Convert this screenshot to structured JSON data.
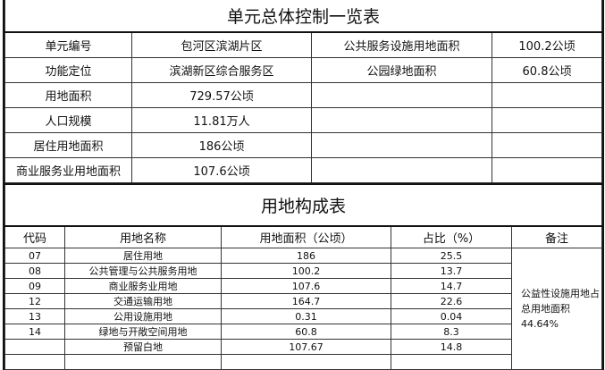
{
  "summary": {
    "title": "单元总体控制一览表",
    "rows": [
      [
        "单元编号",
        "包河区滨湖片区",
        "公共服务设施用地面积",
        "100.2公顷"
      ],
      [
        "功能定位",
        "滨湖新区综合服务区",
        "公园绿地面积",
        "60.8公顷"
      ],
      [
        "用地面积",
        "729.57公顷",
        "",
        ""
      ],
      [
        "人口规模",
        "11.81万人",
        "",
        ""
      ],
      [
        "居住用地面积",
        "186公顷",
        "",
        ""
      ],
      [
        "商业服务业用地面积",
        "107.6公顷",
        "",
        ""
      ]
    ]
  },
  "composition": {
    "title": "用地构成表",
    "headers": [
      "代码",
      "用地名称",
      "用地面积（公顷）",
      "占比（%）",
      "备注"
    ],
    "rows": [
      [
        "07",
        "居住用地",
        "186",
        "25.5"
      ],
      [
        "08",
        "公共管理与公共服务用地",
        "100.2",
        "13.7"
      ],
      [
        "09",
        "商业服务业用地",
        "107.6",
        "14.7"
      ],
      [
        "12",
        "交通运输用地",
        "164.7",
        "22.6"
      ],
      [
        "13",
        "公用设施用地",
        "0.31",
        "0.04"
      ],
      [
        "14",
        "绿地与开敞空间用地",
        "60.8",
        "8.3"
      ],
      [
        "",
        "预留白地",
        "107.67",
        "14.8"
      ],
      [
        "",
        "",
        "",
        ""
      ]
    ],
    "note": "公益性设施用地占总用地面积44.64%"
  }
}
